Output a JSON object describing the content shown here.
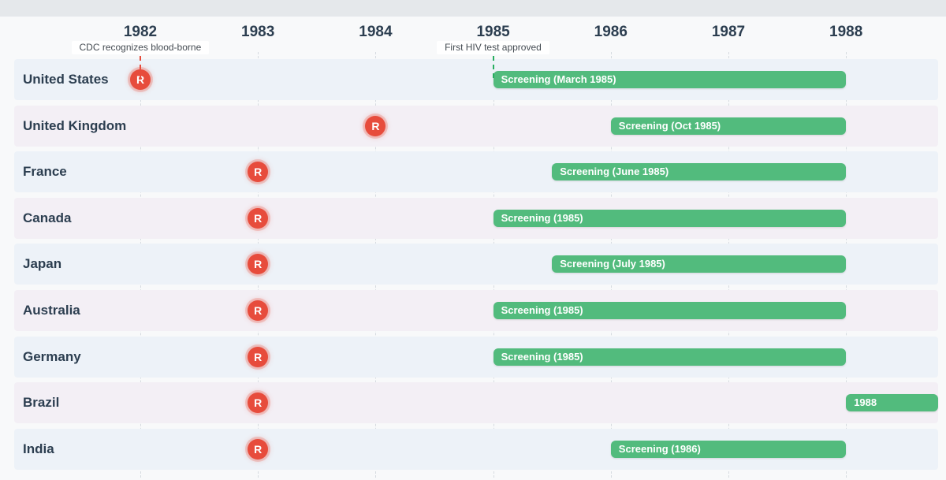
{
  "chart_data": {
    "type": "timeline",
    "title": "",
    "years": [
      "1982",
      "1983",
      "1984",
      "1985",
      "1986",
      "1987",
      "1988"
    ],
    "x_range": [
      1982,
      1988
    ],
    "events": [
      {
        "label": "CDC recognizes blood-borne",
        "year": 1982.0,
        "color": "#e74c3c"
      },
      {
        "label": "First HIV test approved",
        "year": 1985.0,
        "color": "#27ae60"
      }
    ],
    "rows": [
      {
        "country": "United States",
        "recognition_year": 1982.0,
        "marker": "R",
        "screening_start": 1985.0,
        "screening_end": 1988.0,
        "screening_label": "Screening (March 1985)"
      },
      {
        "country": "United Kingdom",
        "recognition_year": 1984.0,
        "marker": "R",
        "screening_start": 1986.0,
        "screening_end": 1988.0,
        "screening_label": "Screening (Oct 1985)"
      },
      {
        "country": "France",
        "recognition_year": 1983.0,
        "marker": "R",
        "screening_start": 1985.5,
        "screening_end": 1988.0,
        "screening_label": "Screening (June 1985)"
      },
      {
        "country": "Canada",
        "recognition_year": 1983.0,
        "marker": "R",
        "screening_start": 1985.0,
        "screening_end": 1988.0,
        "screening_label": "Screening (1985)"
      },
      {
        "country": "Japan",
        "recognition_year": 1983.0,
        "marker": "R",
        "screening_start": 1985.5,
        "screening_end": 1988.0,
        "screening_label": "Screening (July 1985)"
      },
      {
        "country": "Australia",
        "recognition_year": 1983.0,
        "marker": "R",
        "screening_start": 1985.0,
        "screening_end": 1988.0,
        "screening_label": "Screening (1985)"
      },
      {
        "country": "Germany",
        "recognition_year": 1983.0,
        "marker": "R",
        "screening_start": 1985.0,
        "screening_end": 1988.0,
        "screening_label": "Screening (1985)"
      },
      {
        "country": "Brazil",
        "recognition_year": 1983.0,
        "marker": "R",
        "screening_start": 1988.0,
        "screening_end": 1988.8,
        "screening_label": "1988"
      },
      {
        "country": "India",
        "recognition_year": 1983.0,
        "marker": "R",
        "screening_start": 1986.0,
        "screening_end": 1988.0,
        "screening_label": "Screening (1986)"
      }
    ]
  },
  "colors": {
    "recognition_marker": "#e74c3c",
    "screening_bar": "#52bb7d",
    "row_even": "#edf2f8",
    "row_odd": "#f3eff5",
    "text": "#2c3e50"
  }
}
